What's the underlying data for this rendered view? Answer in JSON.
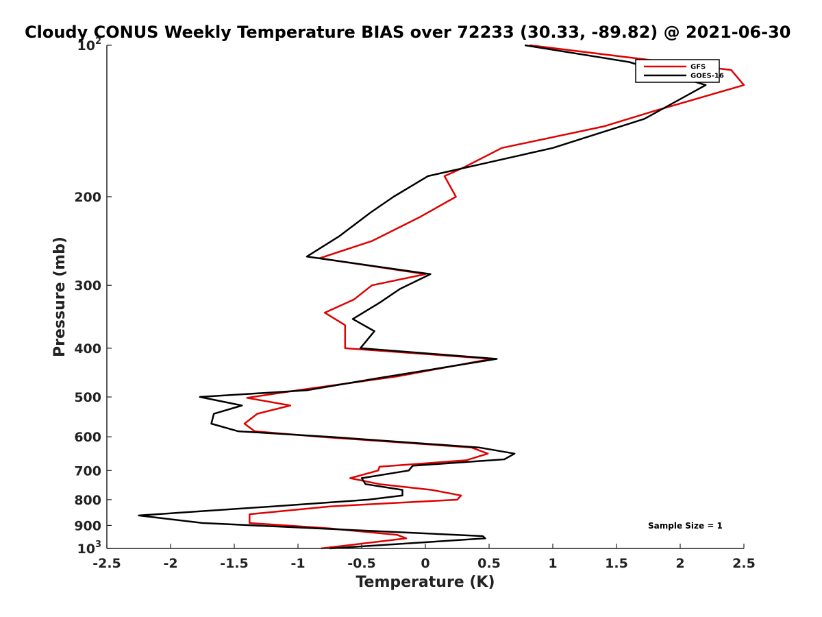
{
  "chart_data": {
    "type": "line",
    "title": "Cloudy CONUS Weekly Temperature BIAS over 72233 (30.33, -89.82) @ 2021-06-30",
    "xlabel": "Temperature (K)",
    "ylabel": "Pressure (mb)",
    "xlim": [
      -2.5,
      2.5
    ],
    "ylim": [
      100,
      1000
    ],
    "yscale": "log",
    "y_reversed": true,
    "x_ticks": [
      -2.5,
      -2,
      -1.5,
      -1,
      -0.5,
      0,
      0.5,
      1,
      1.5,
      2,
      2.5
    ],
    "x_tick_labels": [
      "-2.5",
      "-2",
      "-1.5",
      "-1",
      "-0.5",
      "0",
      "0.5",
      "1",
      "1.5",
      "2",
      "2.5"
    ],
    "y_ticks": [
      100,
      200,
      300,
      400,
      500,
      600,
      700,
      800,
      900,
      1000
    ],
    "y_tick_labels": [
      {
        "base": "10",
        "exp": "2"
      },
      {
        "base": "200"
      },
      {
        "base": "300"
      },
      {
        "base": "400"
      },
      {
        "base": "500"
      },
      {
        "base": "600"
      },
      {
        "base": "700"
      },
      {
        "base": "800"
      },
      {
        "base": "900"
      },
      {
        "base": "10",
        "exp": "3"
      }
    ],
    "legend_position": "top-right",
    "annotation": "Sample Size = 1",
    "series": [
      {
        "name": "GFS",
        "color": "#e00000",
        "points": [
          {
            "x": 0.82,
            "y": 100
          },
          {
            "x": 2.4,
            "y": 112
          },
          {
            "x": 2.5,
            "y": 120
          },
          {
            "x": 1.8,
            "y": 135
          },
          {
            "x": 1.4,
            "y": 145
          },
          {
            "x": 0.6,
            "y": 160
          },
          {
            "x": 0.3,
            "y": 175
          },
          {
            "x": 0.15,
            "y": 182
          },
          {
            "x": 0.24,
            "y": 200
          },
          {
            "x": -0.05,
            "y": 220
          },
          {
            "x": -0.42,
            "y": 245
          },
          {
            "x": -0.83,
            "y": 265
          },
          {
            "x": 0.0,
            "y": 285
          },
          {
            "x": -0.42,
            "y": 300
          },
          {
            "x": -0.56,
            "y": 320
          },
          {
            "x": -0.79,
            "y": 340
          },
          {
            "x": -0.63,
            "y": 360
          },
          {
            "x": -0.63,
            "y": 400
          },
          {
            "x": 0.52,
            "y": 420
          },
          {
            "x": -0.22,
            "y": 455
          },
          {
            "x": -1.0,
            "y": 485
          },
          {
            "x": -1.4,
            "y": 502
          },
          {
            "x": -1.06,
            "y": 520
          },
          {
            "x": -1.32,
            "y": 540
          },
          {
            "x": -1.42,
            "y": 565
          },
          {
            "x": -1.34,
            "y": 585
          },
          {
            "x": -0.82,
            "y": 600
          },
          {
            "x": 0.36,
            "y": 630
          },
          {
            "x": 0.49,
            "y": 648
          },
          {
            "x": 0.32,
            "y": 668
          },
          {
            "x": -0.36,
            "y": 688
          },
          {
            "x": -0.37,
            "y": 700
          },
          {
            "x": -0.59,
            "y": 725
          },
          {
            "x": -0.36,
            "y": 745
          },
          {
            "x": 0.05,
            "y": 765
          },
          {
            "x": 0.28,
            "y": 785
          },
          {
            "x": 0.25,
            "y": 800
          },
          {
            "x": -0.75,
            "y": 825
          },
          {
            "x": -1.38,
            "y": 855
          },
          {
            "x": -1.38,
            "y": 890
          },
          {
            "x": -0.76,
            "y": 912
          },
          {
            "x": -0.22,
            "y": 940
          },
          {
            "x": -0.15,
            "y": 955
          },
          {
            "x": -0.82,
            "y": 1000
          }
        ]
      },
      {
        "name": "GOES-16",
        "color": "#000000",
        "points": [
          {
            "x": 0.78,
            "y": 100
          },
          {
            "x": 1.6,
            "y": 108
          },
          {
            "x": 2.2,
            "y": 120
          },
          {
            "x": 1.72,
            "y": 140
          },
          {
            "x": 1.0,
            "y": 160
          },
          {
            "x": 0.02,
            "y": 182
          },
          {
            "x": -0.25,
            "y": 200
          },
          {
            "x": -0.43,
            "y": 215
          },
          {
            "x": -0.68,
            "y": 240
          },
          {
            "x": -0.93,
            "y": 263
          },
          {
            "x": 0.04,
            "y": 285
          },
          {
            "x": -0.2,
            "y": 305
          },
          {
            "x": -0.36,
            "y": 325
          },
          {
            "x": -0.57,
            "y": 350
          },
          {
            "x": -0.4,
            "y": 370
          },
          {
            "x": -0.51,
            "y": 400
          },
          {
            "x": 0.56,
            "y": 420
          },
          {
            "x": -0.4,
            "y": 460
          },
          {
            "x": -0.93,
            "y": 485
          },
          {
            "x": -1.77,
            "y": 500
          },
          {
            "x": -1.44,
            "y": 520
          },
          {
            "x": -1.66,
            "y": 540
          },
          {
            "x": -1.68,
            "y": 565
          },
          {
            "x": -1.47,
            "y": 585
          },
          {
            "x": -0.75,
            "y": 600
          },
          {
            "x": 0.42,
            "y": 630
          },
          {
            "x": 0.7,
            "y": 648
          },
          {
            "x": 0.62,
            "y": 665
          },
          {
            "x": -0.1,
            "y": 685
          },
          {
            "x": -0.13,
            "y": 700
          },
          {
            "x": -0.5,
            "y": 725
          },
          {
            "x": -0.47,
            "y": 745
          },
          {
            "x": -0.18,
            "y": 765
          },
          {
            "x": -0.18,
            "y": 785
          },
          {
            "x": -0.45,
            "y": 800
          },
          {
            "x": -1.2,
            "y": 825
          },
          {
            "x": -2.25,
            "y": 860
          },
          {
            "x": -1.75,
            "y": 890
          },
          {
            "x": 0.45,
            "y": 945
          },
          {
            "x": 0.47,
            "y": 955
          },
          {
            "x": -0.75,
            "y": 1000
          }
        ]
      }
    ]
  }
}
